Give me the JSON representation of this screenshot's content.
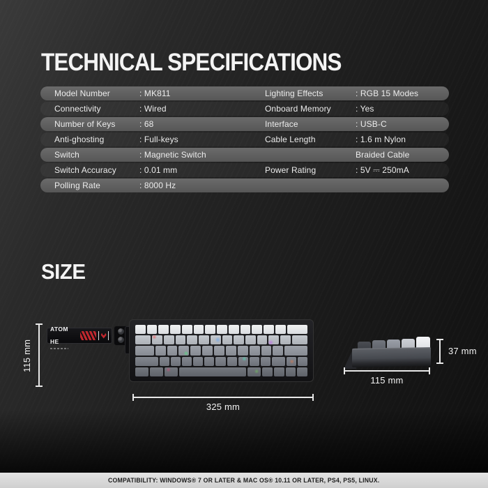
{
  "header": {
    "title": "TECHNICAL SPECIFICATIONS"
  },
  "specs": {
    "rows": [
      {
        "left_label": "Model Number",
        "left_value": ": MK811",
        "right_label": "Lighting Effects",
        "right_value": ": RGB 15 Modes"
      },
      {
        "left_label": "Connectivity",
        "left_value": ": Wired",
        "right_label": "Onboard Memory",
        "right_value": ": Yes"
      },
      {
        "left_label": "Number of Keys",
        "left_value": ": 68",
        "right_label": "Interface",
        "right_value": ": USB-C"
      },
      {
        "left_label": "Anti-ghosting",
        "left_value": ": Full-keys",
        "right_label": "Cable Length",
        "right_value": ": 1.6 m Nylon"
      },
      {
        "left_label": "Switch",
        "left_value": ": Magnetic Switch",
        "right_label": "",
        "right_value": "Braided Cable"
      },
      {
        "left_label": "Switch Accuracy",
        "left_value": ": 0.01 mm",
        "right_label": "Power Rating",
        "right_value": ": 5V ⎓ 250mA"
      },
      {
        "left_label": "Polling Rate",
        "left_value": ": 8000 Hz",
        "right_label": "",
        "right_value": ""
      }
    ]
  },
  "size_section": {
    "heading": "SIZE",
    "brand_label": "ATOM HE",
    "top_view": {
      "height_dim": "115 mm",
      "width_dim": "325 mm"
    },
    "side_view": {
      "height_dim": "37 mm",
      "depth_dim": "115 mm"
    }
  },
  "footer": {
    "compatibility": "COMPATIBILITY:  WINDOWS® 7 OR LATER & MAC OS® 10.11 OR LATER, PS4, PS5, LINUX."
  },
  "colors": {
    "accent_red": "#c1272d",
    "row_gray": "#616161",
    "footer_bg": "#d9d9d9"
  }
}
